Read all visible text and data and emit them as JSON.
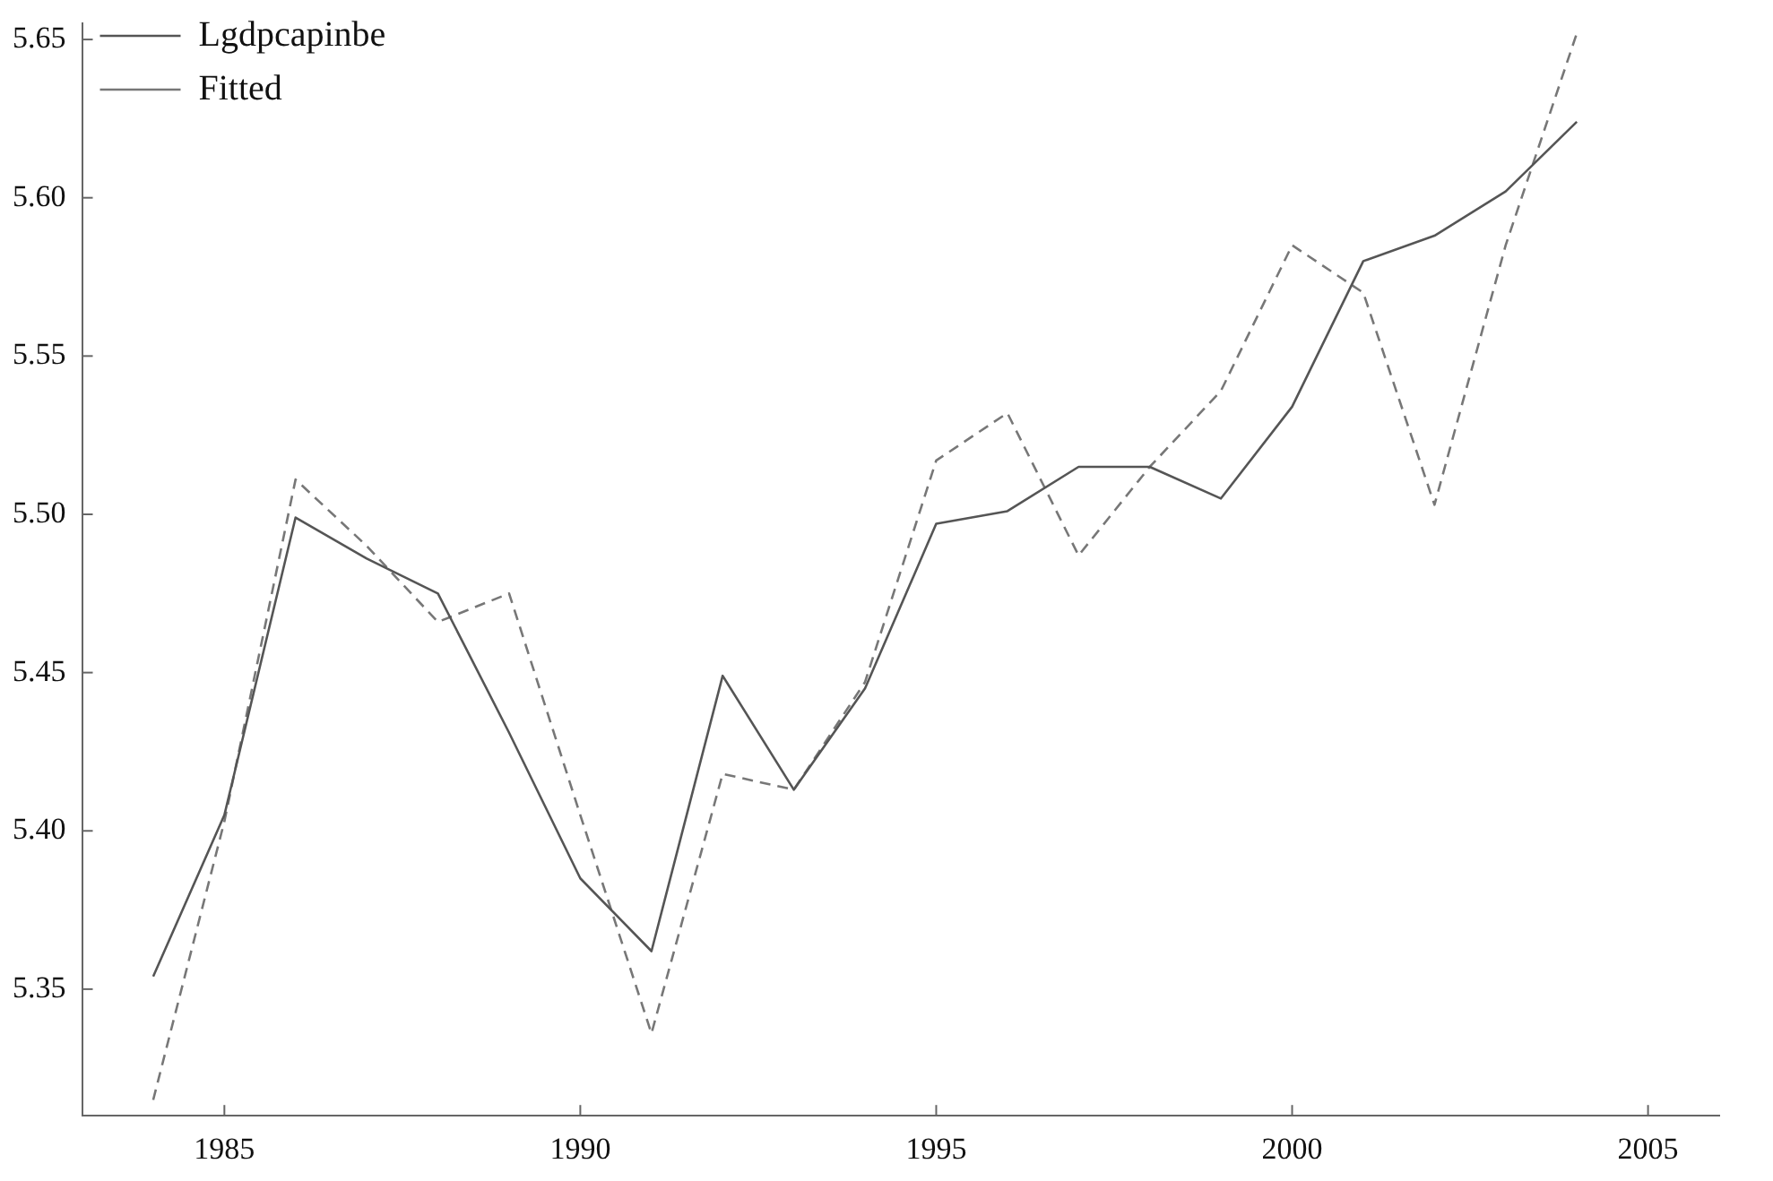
{
  "chart_data": {
    "type": "line",
    "x": [
      1984,
      1985,
      1986,
      1987,
      1988,
      1989,
      1990,
      1991,
      1992,
      1993,
      1994,
      1995,
      1996,
      1997,
      1998,
      1999,
      2000,
      2001,
      2002,
      2003,
      2004
    ],
    "series": [
      {
        "name": "Lgdpcapinbe",
        "color": "#555555",
        "line_style": "solid",
        "values": [
          5.354,
          5.405,
          5.499,
          5.486,
          5.475,
          5.431,
          5.385,
          5.362,
          5.449,
          5.413,
          5.445,
          5.497,
          5.501,
          5.515,
          5.515,
          5.505,
          5.534,
          5.58,
          5.588,
          5.602,
          5.624
        ]
      },
      {
        "name": "Fitted",
        "color": "#777777",
        "line_style": "dashed",
        "values": [
          5.315,
          5.403,
          5.511,
          5.49,
          5.466,
          5.475,
          5.405,
          5.336,
          5.418,
          5.413,
          5.447,
          5.517,
          5.532,
          5.487,
          5.515,
          5.539,
          5.585,
          5.57,
          5.503,
          5.585,
          5.652
        ]
      }
    ],
    "xlim": [
      1983,
      2006
    ],
    "xticks": [
      1985,
      1990,
      1995,
      2000,
      2005
    ],
    "ylim": [
      5.31,
      5.655
    ],
    "yticks": [
      5.35,
      {
        "value": 5.4,
        "label": "5.40"
      },
      5.45,
      {
        "value": 5.5,
        "label": "5.50"
      },
      5.55,
      {
        "value": 5.6,
        "label": "5.60"
      },
      5.65
    ],
    "grid": false,
    "legend": "top left",
    "marker": "none"
  }
}
